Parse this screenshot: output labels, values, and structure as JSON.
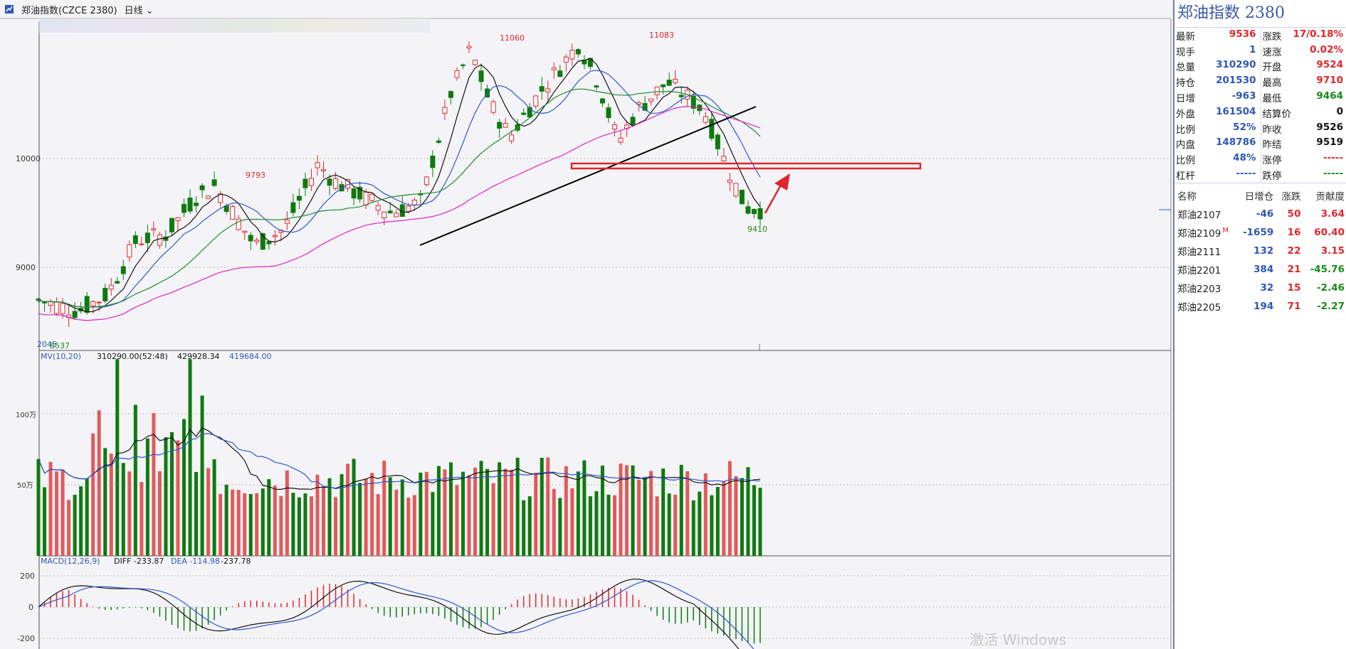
{
  "titlebar": {
    "instrument": "郑油指数(CZCE 2380)",
    "period": "日线"
  },
  "price_chart": {
    "y_ticks": [
      "10000",
      "9000"
    ],
    "annotations": {
      "hi1": "11060",
      "hi2": "11083",
      "hi3": "9793",
      "lo1": "9410",
      "lo2": "2045",
      "lo3": "8537"
    }
  },
  "volume_chart": {
    "legend_prefix": "MV(10,20)",
    "values": [
      "310290.00(52:48)",
      "429928.34",
      "419684.00"
    ],
    "y_ticks": [
      "100万",
      "50万"
    ]
  },
  "macd_chart": {
    "legend_prefix": "MACD(12,26,9)",
    "diff": "DIFF -233.87",
    "dea": "DEA -114.98",
    "macd": "-237.78",
    "y_ticks": [
      "200",
      "0",
      "-200"
    ]
  },
  "panel": {
    "title": "郑油指数  2380",
    "quotes": [
      [
        {
          "l": "最新",
          "v": "9536",
          "c": "red"
        },
        {
          "l": "涨跌",
          "v": "17/0.18%",
          "c": "red"
        }
      ],
      [
        {
          "l": "现手",
          "v": "1",
          "c": "blue"
        },
        {
          "l": "速涨",
          "v": "0.02%",
          "c": "red"
        }
      ],
      [
        {
          "l": "总量",
          "v": "310290",
          "c": "blue"
        },
        {
          "l": "开盘",
          "v": "9524",
          "c": "red"
        }
      ],
      [
        {
          "l": "持仓",
          "v": "201530",
          "c": "blue"
        },
        {
          "l": "最高",
          "v": "9710",
          "c": "red"
        }
      ],
      [
        {
          "l": "日增",
          "v": "-963",
          "c": "blue"
        },
        {
          "l": "最低",
          "v": "9464",
          "c": "green"
        }
      ],
      [
        {
          "l": "外盘",
          "v": "161504",
          "c": "blue"
        },
        {
          "l": "结算价",
          "v": "0",
          "c": "black"
        }
      ],
      [
        {
          "l": "比例",
          "v": "52%",
          "c": "blue"
        },
        {
          "l": "昨收",
          "v": "9526",
          "c": "black"
        }
      ],
      [
        {
          "l": "内盘",
          "v": "148786",
          "c": "blue"
        },
        {
          "l": "昨结",
          "v": "9519",
          "c": "black"
        }
      ],
      [
        {
          "l": "比例",
          "v": "48%",
          "c": "blue"
        },
        {
          "l": "涨停",
          "v": "-----",
          "c": "red"
        }
      ],
      [
        {
          "l": "杠杆",
          "v": "-----",
          "c": "blue"
        },
        {
          "l": "跌停",
          "v": "-----",
          "c": "green"
        }
      ]
    ],
    "contracts_header": [
      "名称",
      "日增仓",
      "涨跌",
      "贡献度"
    ],
    "contracts": [
      {
        "name": "郑油2107",
        "oi": "-46",
        "chg": "50",
        "contrib": "3.64",
        "cc": "red",
        "mark": ""
      },
      {
        "name": "郑油2109",
        "oi": "-1659",
        "chg": "16",
        "contrib": "60.40",
        "cc": "red",
        "mark": "M"
      },
      {
        "name": "郑油2111",
        "oi": "132",
        "chg": "22",
        "contrib": "3.15",
        "cc": "red",
        "mark": ""
      },
      {
        "name": "郑油2201",
        "oi": "384",
        "chg": "21",
        "contrib": "-45.76",
        "cc": "green",
        "mark": ""
      },
      {
        "name": "郑油2203",
        "oi": "32",
        "chg": "15",
        "contrib": "-2.46",
        "cc": "green",
        "mark": ""
      },
      {
        "name": "郑油2205",
        "oi": "194",
        "chg": "71",
        "contrib": "-2.27",
        "cc": "green",
        "mark": ""
      }
    ]
  },
  "watermark": "激活 Windows",
  "colors": {
    "up": "#e0262b",
    "down": "#0f7a0f",
    "ma_blue": "#2f56d0",
    "ma_black": "#111111",
    "ma_green": "#1f8a2c",
    "ma_magenta": "#e020c8",
    "panel_title": "#3a58a6"
  }
}
